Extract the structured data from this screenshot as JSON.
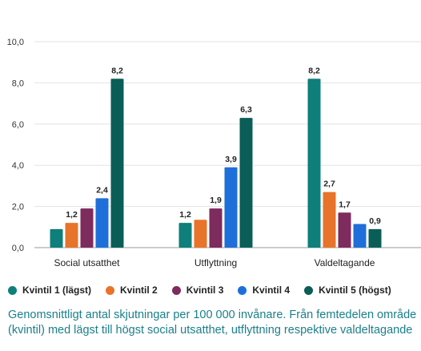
{
  "chart_data": {
    "type": "bar",
    "categories": [
      "Social utsatthet",
      "Utflyttning",
      "Valdeltagande"
    ],
    "series": [
      {
        "name": "Kvintil 1 (lägst)",
        "color": "#0e7f7a",
        "values": [
          0.9,
          1.2,
          8.2
        ],
        "labels": [
          "",
          "1,2",
          "8,2"
        ]
      },
      {
        "name": "Kvintil 2",
        "color": "#e8732a",
        "values": [
          1.2,
          1.35,
          2.7
        ],
        "labels": [
          "1,2",
          "",
          "2,7"
        ]
      },
      {
        "name": "Kvintil 3",
        "color": "#7e2b5e",
        "values": [
          1.9,
          1.9,
          1.7
        ],
        "labels": [
          "",
          "1,9",
          "1,7"
        ]
      },
      {
        "name": "Kvintil 4",
        "color": "#1e6fd9",
        "values": [
          2.4,
          3.9,
          1.15
        ],
        "labels": [
          "2,4",
          "3,9",
          ""
        ]
      },
      {
        "name": "Kvintil 5 (högst)",
        "color": "#0b5e57",
        "values": [
          8.2,
          6.3,
          0.9
        ],
        "labels": [
          "8,2",
          "6,3",
          "0,9"
        ]
      }
    ],
    "ylim": [
      0,
      10
    ],
    "yticks": [
      "0,0",
      "2,0",
      "4,0",
      "6,0",
      "8,0",
      "10,0"
    ],
    "grid": true,
    "legend_position": "bottom"
  },
  "legend": [
    {
      "label": "Kvintil 1 (lägst)",
      "color": "#0e7f7a"
    },
    {
      "label": "Kvintil 2",
      "color": "#e8732a"
    },
    {
      "label": "Kvintil 3",
      "color": "#7e2b5e"
    },
    {
      "label": "Kvintil 4",
      "color": "#1e6fd9"
    },
    {
      "label": "Kvintil 5 (högst)",
      "color": "#0b5e57"
    }
  ],
  "caption": {
    "line1": "Genomsnittligt antal skjutningar per 100 000 invånare. Från femtedelen område",
    "line2": "(kvintil) med lägst till högst social utsatthet, utflyttning respektive valdeltagande"
  }
}
